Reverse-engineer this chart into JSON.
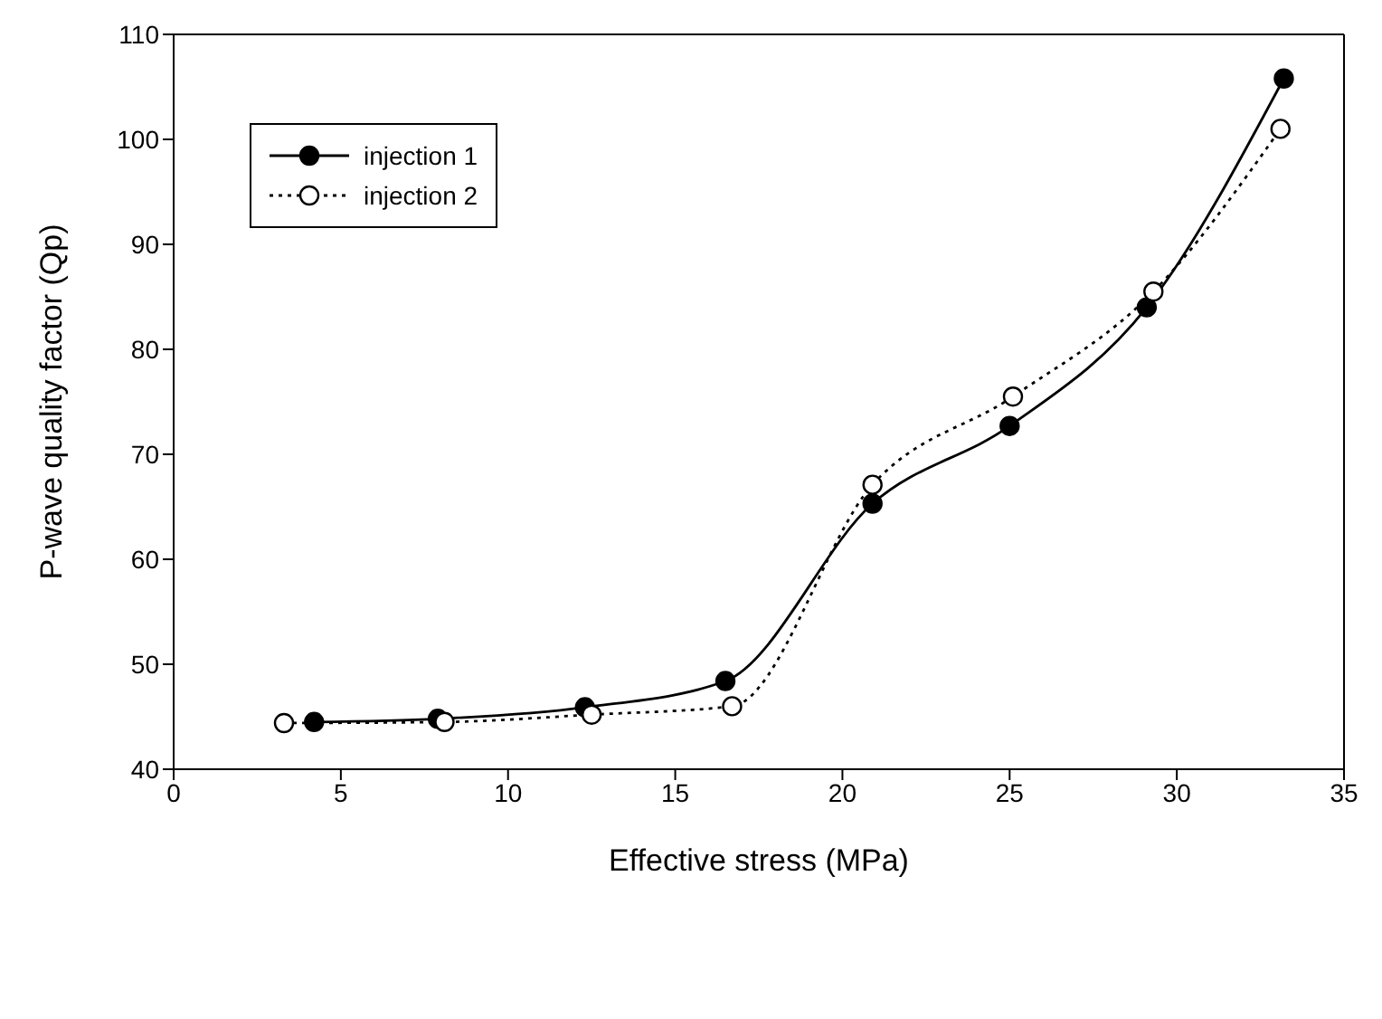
{
  "chart_data": {
    "type": "line",
    "xlabel": "Effective stress (MPa)",
    "ylabel": "P-wave quality factor (Qp)",
    "xlim": [
      0,
      35
    ],
    "xticks": [
      0,
      5,
      10,
      15,
      20,
      25,
      30,
      35
    ],
    "ylim": [
      40,
      110
    ],
    "yticks": [
      40,
      50,
      60,
      70,
      80,
      90,
      100,
      110
    ],
    "legend": "top left",
    "marker": "circle",
    "series": [
      {
        "name": "injection 1",
        "color": "#000000",
        "line_style": "solid",
        "x": [
          4.2,
          7.9,
          12.3,
          16.5,
          20.9,
          25,
          29.1,
          33.2
        ],
        "values": [
          44.5,
          44.8,
          45.9,
          48.4,
          65.3,
          72.7,
          84,
          105.8
        ]
      },
      {
        "name": "injection 2",
        "color": "#000000",
        "line_style": "dotted",
        "x": [
          3.3,
          8.1,
          12.5,
          16.7,
          20.9,
          25.1,
          29.3,
          33.1
        ],
        "values": [
          44.4,
          44.5,
          45.2,
          46,
          67.1,
          75.5,
          85.5,
          101
        ]
      }
    ]
  }
}
